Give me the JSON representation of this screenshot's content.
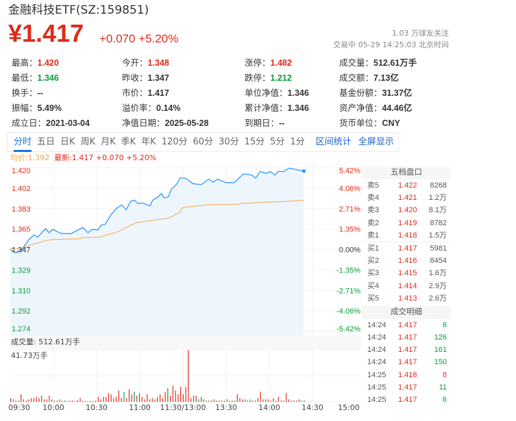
{
  "header": {
    "title": "金融科技ETF(SZ:159851)",
    "price": "¥1.417",
    "change": "+0.070",
    "change_pct": "+5.20%",
    "followers": "1.03 万球友关注",
    "status": "交易中 05-29 14:25:03 北京时间"
  },
  "stats": [
    [
      {
        "label": "最高：",
        "value": "1.420",
        "color": "red"
      },
      {
        "label": "今开：",
        "value": "1.348",
        "color": "red"
      },
      {
        "label": "涨停：",
        "value": "1.482",
        "color": "red"
      },
      {
        "label": "成交量：",
        "value": "512.61万手",
        "color": ""
      }
    ],
    [
      {
        "label": "最低：",
        "value": "1.346",
        "color": "green"
      },
      {
        "label": "昨收：",
        "value": "1.347",
        "color": ""
      },
      {
        "label": "跌停：",
        "value": "1.212",
        "color": "green"
      },
      {
        "label": "成交额：",
        "value": "7.13亿",
        "color": ""
      }
    ],
    [
      {
        "label": "换手：",
        "value": "--",
        "color": ""
      },
      {
        "label": "市价：",
        "value": "1.417",
        "color": ""
      },
      {
        "label": "单位净值：",
        "value": "1.346",
        "color": ""
      },
      {
        "label": "基金份额：",
        "value": "31.37亿",
        "color": ""
      }
    ],
    [
      {
        "label": "振幅：",
        "value": "5.49%",
        "color": ""
      },
      {
        "label": "溢价率：",
        "value": "0.14%",
        "color": ""
      },
      {
        "label": "累计净值：",
        "value": "1.346",
        "color": ""
      },
      {
        "label": "资产净值：",
        "value": "44.46亿",
        "color": ""
      }
    ],
    [
      {
        "label": "成立日：",
        "value": "2021-03-04",
        "color": ""
      },
      {
        "label": "净值日期：",
        "value": "2025-05-28",
        "color": ""
      },
      {
        "label": "到期日：",
        "value": "--",
        "color": ""
      },
      {
        "label": "货币单位：",
        "value": "CNY",
        "color": ""
      }
    ]
  ],
  "tabs": [
    "分时",
    "五日",
    "日K",
    "周K",
    "月K",
    "季K",
    "年K",
    "120分",
    "60分",
    "30分",
    "15分",
    "5分",
    "1分"
  ],
  "active_tab": "分时",
  "tab_actions": [
    "区间统计",
    "全屏显示"
  ],
  "legend": {
    "avg": "均价:1.392",
    "latest": "最新:1.417 +0.070 +5.20%"
  },
  "colors": {
    "up": "#e02a1a",
    "down": "#0b9a3c",
    "price_line": "#1e90ff",
    "avg_line": "#f5a742",
    "fill": "#eef6fd"
  },
  "order_book": {
    "title": "五档盘口",
    "asks": [
      [
        "卖5",
        "1.422",
        "8268"
      ],
      [
        "卖4",
        "1.421",
        "1.2万"
      ],
      [
        "卖3",
        "1.420",
        "8.1万"
      ],
      [
        "卖2",
        "1.419",
        "8782"
      ],
      [
        "卖1",
        "1.418",
        "1.5万"
      ]
    ],
    "bids": [
      [
        "买1",
        "1.417",
        "5981"
      ],
      [
        "买2",
        "1.416",
        "8454"
      ],
      [
        "买3",
        "1.415",
        "1.6万"
      ],
      [
        "买4",
        "1.414",
        "2.9万"
      ],
      [
        "买5",
        "1.413",
        "2.6万"
      ]
    ]
  },
  "trades": {
    "title": "成交明细",
    "rows": [
      [
        "14:24",
        "1.417",
        "6",
        "down"
      ],
      [
        "14:24",
        "1.417",
        "126",
        "down"
      ],
      [
        "14:24",
        "1.417",
        "161",
        "down"
      ],
      [
        "14:24",
        "1.417",
        "150",
        "down"
      ],
      [
        "14:25",
        "1.418",
        "8",
        "up"
      ],
      [
        "14:25",
        "1.417",
        "11",
        "down"
      ],
      [
        "14:25",
        "1.417",
        "6",
        "down"
      ]
    ]
  },
  "volume": {
    "header": "成交量: 512.61万手",
    "max_label": "41.73万手"
  },
  "chart_data": {
    "type": "line",
    "prev_close": 1.347,
    "y_ticks_left": [
      "1.420",
      "1.402",
      "1.383",
      "1.365",
      "1.347",
      "1.329",
      "1.310",
      "1.292",
      "1.274"
    ],
    "y_ticks_right": [
      "5.42%",
      "4.06%",
      "2.71%",
      "1.35%",
      "0.00%",
      "-1.35%",
      "-2.71%",
      "-4.06%",
      "-5.42%"
    ],
    "ylim": [
      1.274,
      1.42
    ],
    "x_ticks": [
      "09:30",
      "10:00",
      "10:30",
      "11:00",
      "11:30/13:00",
      "13:30",
      "14:00",
      "14:30",
      "15:00"
    ],
    "x_unit": "minutes since open",
    "xlim": [
      0,
      240
    ],
    "price": [
      [
        0,
        1.347
      ],
      [
        4,
        1.344
      ],
      [
        8,
        1.347
      ],
      [
        13,
        1.356
      ],
      [
        16.6,
        1.36
      ],
      [
        19,
        1.358
      ],
      [
        24.5,
        1.3656
      ],
      [
        27,
        1.362
      ],
      [
        29.5,
        1.365
      ],
      [
        35,
        1.3615
      ],
      [
        42,
        1.361
      ],
      [
        45,
        1.363
      ],
      [
        50.5,
        1.3666
      ],
      [
        54,
        1.362
      ],
      [
        57,
        1.365
      ],
      [
        61,
        1.3646
      ],
      [
        63,
        1.3687
      ],
      [
        66,
        1.3697
      ],
      [
        70,
        1.378
      ],
      [
        74,
        1.384
      ],
      [
        77.5,
        1.3868
      ],
      [
        80.5,
        1.3825
      ],
      [
        83.6,
        1.3899
      ],
      [
        86,
        1.391
      ],
      [
        89,
        1.388
      ],
      [
        92,
        1.3885
      ],
      [
        97,
        1.386
      ],
      [
        99,
        1.391
      ],
      [
        102.7,
        1.394
      ],
      [
        105,
        1.397
      ],
      [
        107,
        1.393
      ],
      [
        109.8,
        1.394
      ],
      [
        112,
        1.401
      ],
      [
        115.3,
        1.4047
      ],
      [
        118,
        1.4108
      ],
      [
        120,
        1.4108
      ],
      [
        122,
        1.4105
      ],
      [
        127,
        1.4057
      ],
      [
        132.7,
        1.405
      ],
      [
        138,
        1.4098
      ],
      [
        141,
        1.407
      ],
      [
        144,
        1.4098
      ],
      [
        150,
        1.4067
      ],
      [
        155.6,
        1.4067
      ],
      [
        162,
        1.4145
      ],
      [
        165,
        1.414
      ],
      [
        168,
        1.4133
      ],
      [
        170.6,
        1.4108
      ],
      [
        173.7,
        1.4166
      ],
      [
        178,
        1.415
      ],
      [
        180.7,
        1.4166
      ],
      [
        184,
        1.4133
      ],
      [
        186,
        1.4166
      ],
      [
        190,
        1.4166
      ],
      [
        193.5,
        1.4195
      ],
      [
        197,
        1.4188
      ],
      [
        204,
        1.417
      ]
    ],
    "avg": [
      [
        0,
        1.348
      ],
      [
        8,
        1.348
      ],
      [
        13.4,
        1.3508
      ],
      [
        24.5,
        1.3549
      ],
      [
        30,
        1.356
      ],
      [
        48,
        1.3566
      ],
      [
        49.7,
        1.3576
      ],
      [
        62,
        1.358
      ],
      [
        67,
        1.36
      ],
      [
        75,
        1.363
      ],
      [
        81,
        1.367
      ],
      [
        87.6,
        1.371
      ],
      [
        98.6,
        1.373
      ],
      [
        110,
        1.375
      ],
      [
        117.6,
        1.38
      ],
      [
        120,
        1.3845
      ],
      [
        138,
        1.387
      ],
      [
        158.5,
        1.3875
      ],
      [
        160,
        1.388
      ],
      [
        172.8,
        1.389
      ],
      [
        193.3,
        1.39
      ],
      [
        204,
        1.391
      ]
    ],
    "volume_unit": "万手",
    "volume_bars": [
      [
        3,
        "u"
      ],
      [
        2,
        "d"
      ],
      [
        1,
        "d"
      ],
      [
        1,
        "u"
      ],
      [
        6,
        "u"
      ],
      [
        2,
        "d"
      ],
      [
        1,
        "u"
      ],
      [
        2,
        "u"
      ],
      [
        3,
        "u"
      ],
      [
        3,
        "u"
      ],
      [
        4,
        "u"
      ],
      [
        3,
        "u"
      ],
      [
        5,
        "d"
      ],
      [
        2,
        "u"
      ],
      [
        2,
        "u"
      ],
      [
        5,
        "u"
      ],
      [
        2,
        "d"
      ],
      [
        1,
        "u"
      ],
      [
        1,
        "u"
      ],
      [
        2,
        "d"
      ],
      [
        1,
        "u"
      ],
      [
        1,
        "d"
      ],
      [
        0.5,
        "u"
      ],
      [
        1,
        "u"
      ],
      [
        1,
        "u"
      ],
      [
        0.7,
        "u"
      ],
      [
        1.3,
        "u"
      ],
      [
        3,
        "u"
      ],
      [
        1,
        "d"
      ],
      [
        0.7,
        "u"
      ],
      [
        0.5,
        "u"
      ],
      [
        0.7,
        "u"
      ],
      [
        0.5,
        "u"
      ],
      [
        1,
        "u"
      ],
      [
        4,
        "u"
      ],
      [
        2,
        "u"
      ],
      [
        4,
        "u"
      ],
      [
        4,
        "u"
      ],
      [
        7,
        "u"
      ],
      [
        6,
        "u"
      ],
      [
        3,
        "u"
      ],
      [
        4,
        "u"
      ],
      [
        9,
        "u"
      ],
      [
        3,
        "u"
      ],
      [
        8,
        "d"
      ],
      [
        3,
        "u"
      ],
      [
        10,
        "u"
      ],
      [
        6,
        "u"
      ],
      [
        8,
        "d"
      ],
      [
        5,
        "u"
      ],
      [
        7,
        "d"
      ],
      [
        4,
        "u"
      ],
      [
        2,
        "u"
      ],
      [
        6,
        "u"
      ],
      [
        2,
        "d"
      ],
      [
        3,
        "u"
      ],
      [
        2,
        "u"
      ],
      [
        4,
        "u"
      ],
      [
        6,
        "u"
      ],
      [
        3,
        "u"
      ],
      [
        8,
        "u"
      ],
      [
        11,
        "d"
      ],
      [
        5,
        "u"
      ],
      [
        13,
        "u"
      ],
      [
        9,
        "u"
      ],
      [
        6,
        "u"
      ],
      [
        12,
        "u"
      ],
      [
        6,
        "u"
      ],
      [
        12,
        "u"
      ],
      [
        41.73,
        "u"
      ],
      [
        3,
        "u"
      ],
      [
        5,
        "d"
      ],
      [
        5,
        "u"
      ],
      [
        2,
        "d"
      ],
      [
        4,
        "d"
      ],
      [
        2,
        "u"
      ],
      [
        1,
        "d"
      ],
      [
        1,
        "u"
      ],
      [
        1,
        "u"
      ],
      [
        2,
        "u"
      ],
      [
        1,
        "d"
      ],
      [
        1,
        "u"
      ],
      [
        1,
        "u"
      ],
      [
        1,
        "d"
      ],
      [
        2,
        "u"
      ],
      [
        1,
        "d"
      ],
      [
        1,
        "u"
      ],
      [
        1,
        "u"
      ],
      [
        6,
        "u"
      ],
      [
        3,
        "u"
      ],
      [
        2,
        "u"
      ],
      [
        2,
        "d"
      ],
      [
        1,
        "u"
      ],
      [
        2,
        "d"
      ],
      [
        1,
        "u"
      ],
      [
        1,
        "u"
      ],
      [
        3,
        "u"
      ],
      [
        8,
        "u"
      ],
      [
        2,
        "u"
      ],
      [
        2,
        "d"
      ],
      [
        2,
        "u"
      ],
      [
        1,
        "u"
      ],
      [
        3,
        "d"
      ],
      [
        1,
        "u"
      ],
      [
        4,
        "u"
      ],
      [
        1,
        "u"
      ],
      [
        1,
        "u"
      ],
      [
        7,
        "u"
      ],
      [
        2,
        "u"
      ],
      [
        1,
        "u"
      ],
      [
        1,
        "u"
      ],
      [
        1,
        "u"
      ],
      [
        2,
        "u"
      ],
      [
        1,
        "u"
      ],
      [
        1,
        "u"
      ]
    ]
  }
}
